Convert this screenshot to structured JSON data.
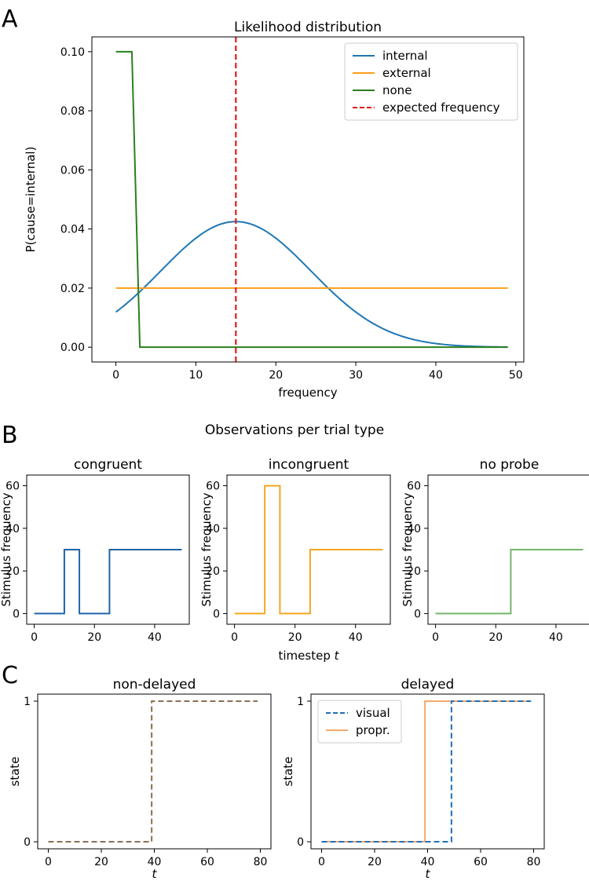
{
  "panel_letters": {
    "a": "A",
    "b": "B",
    "c": "C"
  },
  "panel_b_title": "Observations per trial type",
  "colors": {
    "internal": "#1f77b4",
    "external": "#ff9e1b",
    "none": "#2a7f1e",
    "expected": "#e41a1c",
    "congruent": "#1f64a8",
    "incongruent": "#f5a623",
    "noprobe": "#74b56b",
    "visual": "#1f6fb8",
    "propr": "#f5a86a",
    "nondelayed": "#8a6f52"
  },
  "chart_data": [
    {
      "id": "A",
      "type": "line",
      "title": "Likelihood distribution",
      "xlabel": "frequency",
      "ylabel": "P(cause=internal)",
      "xlim": [
        -3,
        51
      ],
      "ylim": [
        -0.005,
        0.105
      ],
      "xticks": [
        0,
        10,
        20,
        30,
        40,
        50
      ],
      "xtick_labels": [
        "0",
        "10",
        "20",
        "30",
        "40",
        "50"
      ],
      "yticks": [
        0.0,
        0.02,
        0.04,
        0.06,
        0.08,
        0.1
      ],
      "ytick_labels": [
        "0.00",
        "0.02",
        "0.04",
        "0.06",
        "0.08",
        "0.10"
      ],
      "legend": {
        "position": "top-right",
        "entries": [
          "internal",
          "external",
          "none",
          "expected frequency"
        ]
      },
      "series": [
        {
          "name": "internal",
          "color_key": "internal",
          "style": "solid",
          "gaussian": {
            "mean": 15,
            "sd": 9.4,
            "peak": 0.0425
          },
          "x_range": [
            0,
            49
          ]
        },
        {
          "name": "external",
          "color_key": "external",
          "style": "solid",
          "x": [
            0,
            49
          ],
          "y": [
            0.02,
            0.02
          ]
        },
        {
          "name": "none",
          "color_key": "none",
          "style": "solid",
          "x": [
            0,
            2,
            3,
            49
          ],
          "y": [
            0.1,
            0.1,
            0.0,
            0.0
          ]
        },
        {
          "name": "expected frequency",
          "color_key": "expected",
          "style": "dashed",
          "vline": 15
        }
      ]
    },
    {
      "id": "B1",
      "type": "line",
      "title": "congruent",
      "xlabel": "",
      "ylabel": "Stimulus frequency",
      "xlim": [
        -2.5,
        51.5
      ],
      "ylim": [
        -5,
        65
      ],
      "xticks": [
        0,
        20,
        40
      ],
      "xtick_labels": [
        "0",
        "20",
        "40"
      ],
      "yticks": [
        0,
        20,
        40,
        60
      ],
      "ytick_labels": [
        "0",
        "20",
        "40",
        "60"
      ],
      "series": [
        {
          "name": "congruent",
          "color_key": "congruent",
          "style": "solid",
          "x": [
            0,
            10,
            10,
            15,
            15,
            25,
            25,
            49
          ],
          "y": [
            0,
            0,
            30,
            30,
            0,
            0,
            30,
            30
          ]
        }
      ]
    },
    {
      "id": "B2",
      "type": "line",
      "title": "incongruent",
      "xlabel": "timestep t",
      "ylabel": "Stimulus frequency",
      "xlim": [
        -2.5,
        51.5
      ],
      "ylim": [
        -5,
        65
      ],
      "xticks": [
        0,
        20,
        40
      ],
      "xtick_labels": [
        "0",
        "20",
        "40"
      ],
      "yticks": [
        0,
        20,
        40,
        60
      ],
      "ytick_labels": [
        "0",
        "20",
        "40",
        "60"
      ],
      "series": [
        {
          "name": "incongruent",
          "color_key": "incongruent",
          "style": "solid",
          "x": [
            0,
            10,
            10,
            15,
            15,
            25,
            25,
            49
          ],
          "y": [
            0,
            0,
            60,
            60,
            0,
            0,
            30,
            30
          ]
        }
      ]
    },
    {
      "id": "B3",
      "type": "line",
      "title": "no probe",
      "xlabel": "",
      "ylabel": "Stimulus frequency",
      "xlim": [
        -2.5,
        51.5
      ],
      "ylim": [
        -5,
        65
      ],
      "xticks": [
        0,
        20,
        40
      ],
      "xtick_labels": [
        "0",
        "20",
        "40"
      ],
      "yticks": [
        0,
        20,
        40,
        60
      ],
      "ytick_labels": [
        "0",
        "20",
        "40",
        "60"
      ],
      "series": [
        {
          "name": "no probe",
          "color_key": "noprobe",
          "style": "solid",
          "x": [
            0,
            25,
            25,
            49
          ],
          "y": [
            0,
            0,
            30,
            30
          ]
        }
      ]
    },
    {
      "id": "C1",
      "type": "line",
      "title": "non-delayed",
      "xlabel": "t",
      "ylabel": "state",
      "xlim": [
        -4,
        84
      ],
      "ylim": [
        -0.05,
        1.05
      ],
      "xticks": [
        0,
        20,
        40,
        60,
        80
      ],
      "xtick_labels": [
        "0",
        "20",
        "40",
        "60",
        "80"
      ],
      "yticks": [
        0,
        1
      ],
      "ytick_labels": [
        "0",
        "1"
      ],
      "series": [
        {
          "name": "non-delayed",
          "color_key": "nondelayed",
          "style": "dashed",
          "x": [
            0,
            39,
            39,
            79
          ],
          "y": [
            0,
            0,
            1,
            1
          ]
        }
      ]
    },
    {
      "id": "C2",
      "type": "line",
      "title": "delayed",
      "xlabel": "t",
      "ylabel": "state",
      "xlim": [
        -4,
        84
      ],
      "ylim": [
        -0.05,
        1.05
      ],
      "xticks": [
        0,
        20,
        40,
        60,
        80
      ],
      "xtick_labels": [
        "0",
        "20",
        "40",
        "60",
        "80"
      ],
      "yticks": [
        0,
        1
      ],
      "ytick_labels": [
        "0",
        "1"
      ],
      "legend": {
        "position": "top-left",
        "entries": [
          "visual",
          "propr."
        ]
      },
      "series": [
        {
          "name": "propr.",
          "color_key": "propr",
          "style": "solid",
          "x": [
            0,
            39,
            39,
            79
          ],
          "y": [
            0,
            0,
            1,
            1
          ]
        },
        {
          "name": "visual",
          "color_key": "visual",
          "style": "dashed",
          "x": [
            0,
            49,
            49,
            79
          ],
          "y": [
            0,
            0,
            1,
            1
          ]
        }
      ]
    }
  ]
}
